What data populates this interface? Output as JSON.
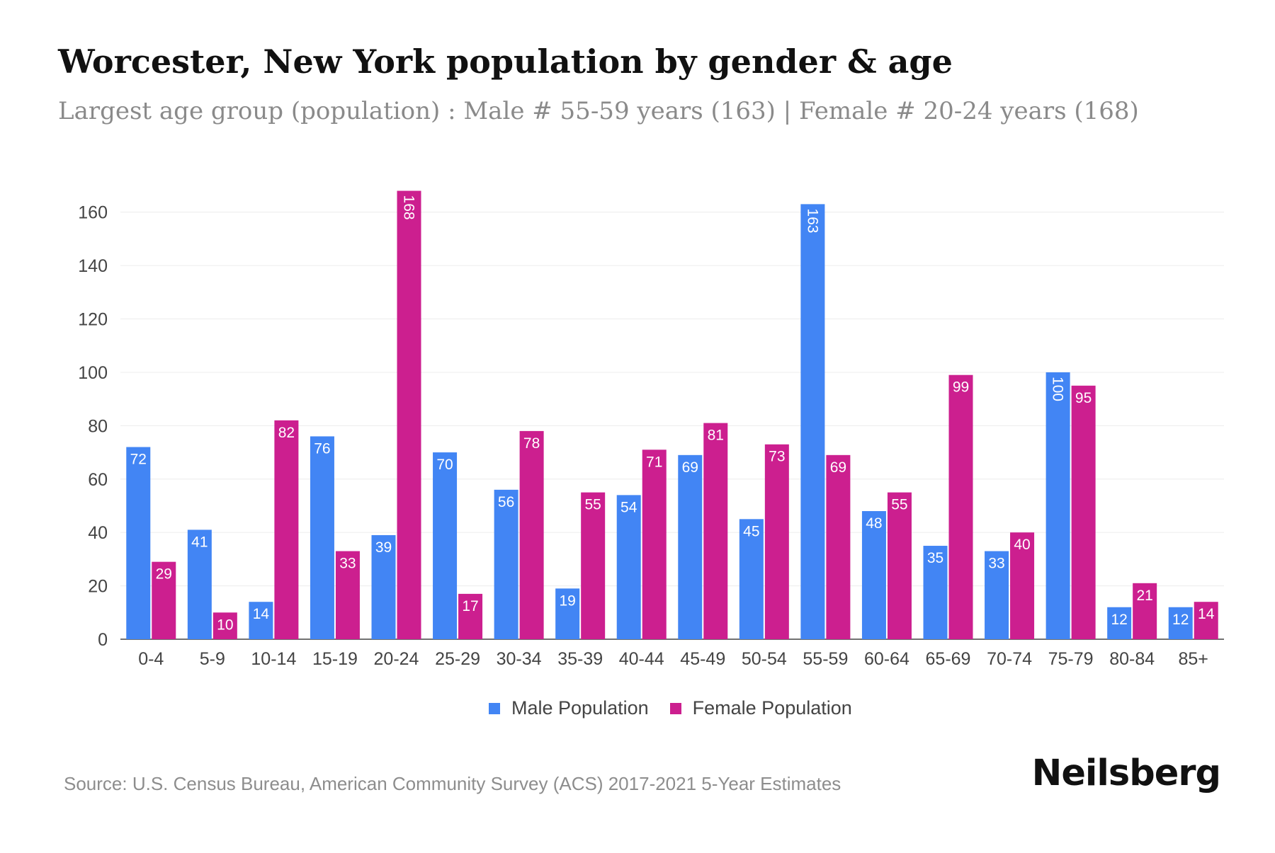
{
  "title": "Worcester, New York population by gender & age",
  "subtitle": "Largest age group (population) : Male # 55-59 years (163) | Female # 20-24 years (168)",
  "legend": {
    "male_label": "Male Population",
    "female_label": "Female Population"
  },
  "source": "Source: U.S. Census Bureau, American Community Survey (ACS) 2017-2021 5-Year Estimates",
  "brand": "Neilsberg",
  "colors": {
    "male": "#4285f4",
    "female": "#cc1f8f"
  },
  "chart_data": {
    "type": "bar",
    "categories": [
      "0-4",
      "5-9",
      "10-14",
      "15-19",
      "20-24",
      "25-29",
      "30-34",
      "35-39",
      "40-44",
      "45-49",
      "50-54",
      "55-59",
      "60-64",
      "65-69",
      "70-74",
      "75-79",
      "80-84",
      "85+"
    ],
    "series": [
      {
        "name": "Male Population",
        "values": [
          72,
          41,
          14,
          76,
          39,
          70,
          56,
          19,
          54,
          69,
          45,
          163,
          48,
          35,
          33,
          100,
          12,
          12
        ]
      },
      {
        "name": "Female Population",
        "values": [
          29,
          10,
          82,
          33,
          168,
          17,
          78,
          55,
          71,
          81,
          73,
          69,
          55,
          99,
          40,
          95,
          21,
          14
        ]
      }
    ],
    "yticks": [
      0,
      20,
      40,
      60,
      80,
      100,
      120,
      140,
      160
    ],
    "ylim": [
      0,
      170
    ],
    "grid": true,
    "legend_position": "bottom"
  }
}
